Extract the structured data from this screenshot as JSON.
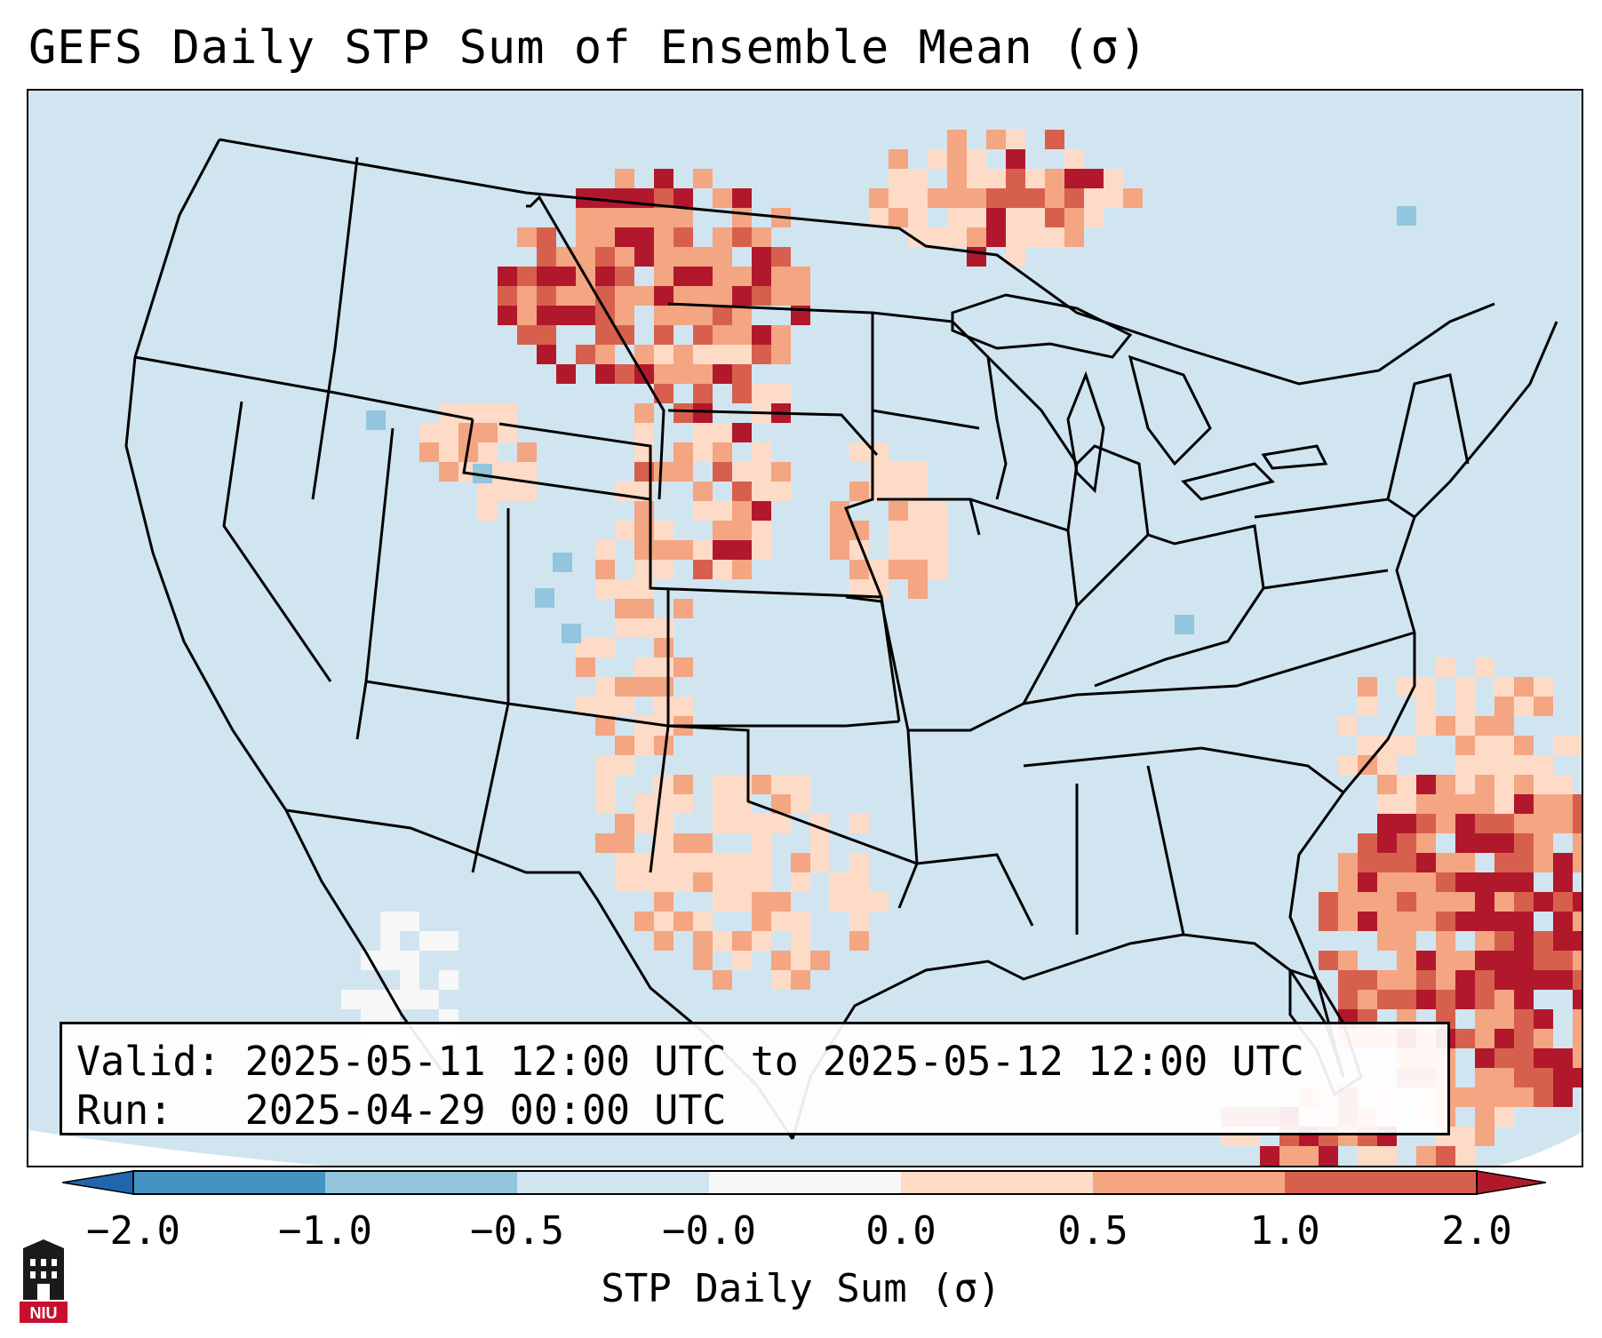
{
  "title": "GEFS Daily STP Sum of Ensemble Mean (σ)",
  "info_box": {
    "valid_label": "Valid:",
    "valid_value": "2025-05-11 12:00 UTC to 2025-05-12 12:00 UTC",
    "run_label": "Run:",
    "run_value": "2025-04-29 00:00 UTC"
  },
  "colorbar": {
    "label": "STP Daily Sum (σ)",
    "ticks": [
      "−2.0",
      "−1.0",
      "−0.5",
      "−0.0",
      "0.0",
      "0.5",
      "1.0",
      "2.0"
    ],
    "colors": {
      "extend_low": "#2166ac",
      "neg_2_to_1": "#4393c3",
      "neg_1_to_05": "#92c5de",
      "neg_05_to_0": "#d1e5f0",
      "zero": "#f7f7f7",
      "pos_0_to_05": "#fddbc7",
      "pos_05_to_1": "#f4a582",
      "pos_1_to_2": "#d6604d",
      "extend_high": "#b2182b"
    }
  },
  "map": {
    "background_color": "#d1e5f0",
    "region": "Contiguous United States",
    "features": [
      "state-borders",
      "coastlines",
      "country-borders",
      "great-lakes"
    ]
  },
  "logo": {
    "text": "NIU"
  }
}
